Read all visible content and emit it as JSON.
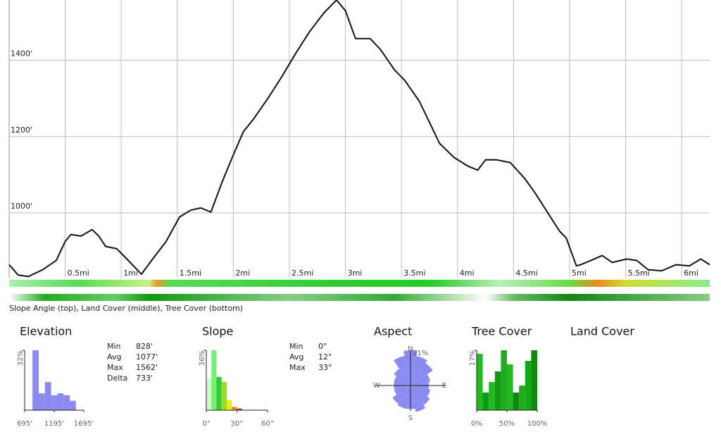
{
  "chart_data": [
    {
      "type": "line",
      "color": "#111111",
      "x": [
        0.0,
        0.08,
        0.17,
        0.3,
        0.42,
        0.5,
        0.55,
        0.64,
        0.74,
        0.8,
        0.86,
        0.96,
        1.05,
        1.18,
        1.27,
        1.4,
        1.52,
        1.62,
        1.71,
        1.8,
        1.9,
        1.99,
        2.09,
        2.18,
        2.31,
        2.43,
        2.56,
        2.68,
        2.81,
        2.92,
        3.0,
        3.09,
        3.22,
        3.31,
        3.44,
        3.53,
        3.66,
        3.75,
        3.84,
        3.97,
        4.09,
        4.18,
        4.25,
        4.35,
        4.47,
        4.6,
        4.69,
        4.79,
        4.91,
        4.97,
        5.06,
        5.1,
        5.19,
        5.29,
        5.38,
        5.51,
        5.6,
        5.7,
        5.82,
        5.95,
        6.07,
        6.17,
        6.25
      ],
      "values": [
        864,
        837,
        833,
        851,
        875,
        925,
        943,
        939,
        956,
        939,
        912,
        906,
        879,
        839,
        875,
        925,
        989,
        1007,
        1013,
        1002,
        1081,
        1145,
        1213,
        1246,
        1301,
        1356,
        1420,
        1475,
        1525,
        1558,
        1530,
        1457,
        1457,
        1429,
        1374,
        1347,
        1292,
        1237,
        1182,
        1145,
        1123,
        1112,
        1139,
        1139,
        1132,
        1090,
        1053,
        1007,
        952,
        934,
        861,
        864,
        875,
        888,
        870,
        879,
        875,
        851,
        848,
        864,
        861,
        879,
        864
      ],
      "xlim": [
        0,
        6.25
      ],
      "ylim": [
        830,
        1558
      ],
      "grid": true,
      "xticks": [
        {
          "value": 0.5,
          "label": "0.5mi"
        },
        {
          "value": 1,
          "label": "1mi"
        },
        {
          "value": 1.5,
          "label": "1.5mi"
        },
        {
          "value": 2,
          "label": "2mi"
        },
        {
          "value": 2.5,
          "label": "2.5mi"
        },
        {
          "value": 3,
          "label": "3mi"
        },
        {
          "value": 3.5,
          "label": "3.5mi"
        },
        {
          "value": 4,
          "label": "4mi"
        },
        {
          "value": 4.5,
          "label": "4.5mi"
        },
        {
          "value": 5,
          "label": "5mi"
        },
        {
          "value": 5.5,
          "label": "5.5mi"
        },
        {
          "value": 6,
          "label": "6mi"
        }
      ],
      "yticks": [
        {
          "value": 1000,
          "label": "1000'"
        },
        {
          "value": 1200,
          "label": "1200'"
        },
        {
          "value": 1400,
          "label": "1400'"
        }
      ]
    },
    {
      "type": "histogram",
      "title": "Elevation",
      "color": "#8a8af0",
      "bins": [
        828,
        933,
        1038,
        1143,
        1248,
        1353,
        1458,
        1562
      ],
      "values": [
        32,
        9,
        15,
        8,
        9,
        8,
        5
      ],
      "xlim": [
        695,
        1695
      ],
      "ylim": [
        0,
        32
      ],
      "xticks": [
        {
          "value": 695,
          "label": "695'"
        },
        {
          "value": 1195,
          "label": "1195'"
        },
        {
          "value": 1695,
          "label": "1695'"
        }
      ],
      "yticks": [
        {
          "value": 32,
          "label": "32%"
        }
      ]
    },
    {
      "type": "histogram",
      "title": "Slope",
      "colors": [
        "#ccffcc",
        "#77ee77",
        "#33cc33",
        "#99dd22",
        "#ddee22",
        "#ee8822",
        "#dd2222"
      ],
      "bins": [
        0,
        5,
        10,
        15,
        20,
        25,
        30,
        35
      ],
      "values": [
        19,
        36,
        20,
        17,
        6,
        2,
        1
      ],
      "xlim": [
        0,
        60
      ],
      "ylim": [
        0,
        36
      ],
      "xticks": [
        {
          "value": 0,
          "label": "0°"
        },
        {
          "value": 30,
          "label": "30°"
        },
        {
          "value": 60,
          "label": "60°"
        }
      ],
      "yticks": [
        {
          "value": 36,
          "label": "36%"
        }
      ]
    },
    {
      "type": "rose",
      "title": "Aspect",
      "color": "#8a8af0",
      "categories": [
        "N",
        null,
        null,
        null,
        "E",
        null,
        null,
        null,
        "S",
        null,
        null,
        null,
        "W",
        null,
        null,
        null
      ],
      "values": [
        21,
        18,
        16,
        12,
        11,
        12,
        14,
        16,
        14,
        14,
        13,
        10,
        10,
        10,
        12,
        18
      ],
      "rlim": [
        0,
        21
      ],
      "rticks": [
        {
          "value": 21,
          "label": "21%"
        }
      ]
    },
    {
      "type": "histogram",
      "title": "Tree Cover",
      "colors": [
        "#22bb22",
        "#119911",
        "#22bb22",
        "#119911",
        "#22aa22",
        "#22bb22",
        "#118811",
        "#22aa22",
        "#11aa11",
        "#118811"
      ],
      "bins": [
        0,
        10,
        20,
        30,
        40,
        50,
        60,
        70,
        80,
        90,
        100
      ],
      "values": [
        16,
        5,
        8,
        11,
        17,
        13,
        5,
        7,
        14,
        17
      ],
      "xlim": [
        0,
        100
      ],
      "ylim": [
        0,
        17
      ],
      "xticks": [
        {
          "value": 0,
          "label": "0%"
        },
        {
          "value": 50,
          "label": "50%"
        },
        {
          "value": 100,
          "label": "100%"
        }
      ],
      "yticks": [
        {
          "value": 17,
          "label": "17%"
        }
      ]
    }
  ],
  "caption": "Slope Angle (top), Land Cover (middle), Tree Cover (bottom)",
  "land_cover_title": "Land Cover",
  "stats": {
    "elevation": [
      {
        "label": "Min",
        "value": "828'"
      },
      {
        "label": "Avg",
        "value": "1077'"
      },
      {
        "label": "Max",
        "value": "1562'"
      },
      {
        "label": "Delta",
        "value": "733'"
      }
    ],
    "slope": [
      {
        "label": "Min",
        "value": "0°"
      },
      {
        "label": "Avg",
        "value": "12°"
      },
      {
        "label": "Max",
        "value": "33°"
      }
    ]
  }
}
